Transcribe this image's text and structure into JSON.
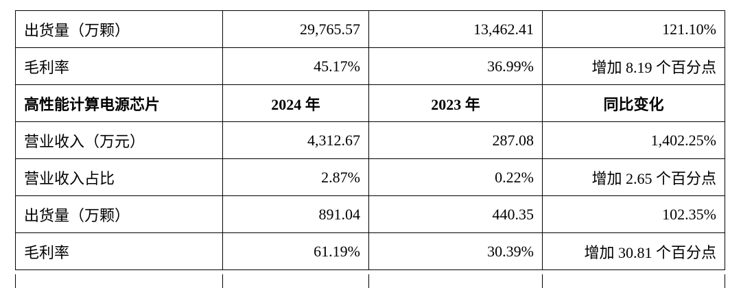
{
  "table": {
    "rows": [
      [
        "出货量（万颗）",
        "29,765.57",
        "13,462.41",
        "121.10%"
      ],
      [
        "毛利率",
        "45.17%",
        "36.99%",
        "增加 8.19 个百分点"
      ],
      [
        "高性能计算电源芯片",
        "2024 年",
        "2023 年",
        "同比变化"
      ],
      [
        "营业收入（万元）",
        "4,312.67",
        "287.08",
        "1,402.25%"
      ],
      [
        "营业收入占比",
        "2.87%",
        "0.22%",
        "增加 2.65 个百分点"
      ],
      [
        "出货量（万颗）",
        "891.04",
        "440.35",
        "102.35%"
      ],
      [
        "毛利率",
        "61.19%",
        "30.39%",
        "增加 30.81 个百分点"
      ]
    ]
  }
}
